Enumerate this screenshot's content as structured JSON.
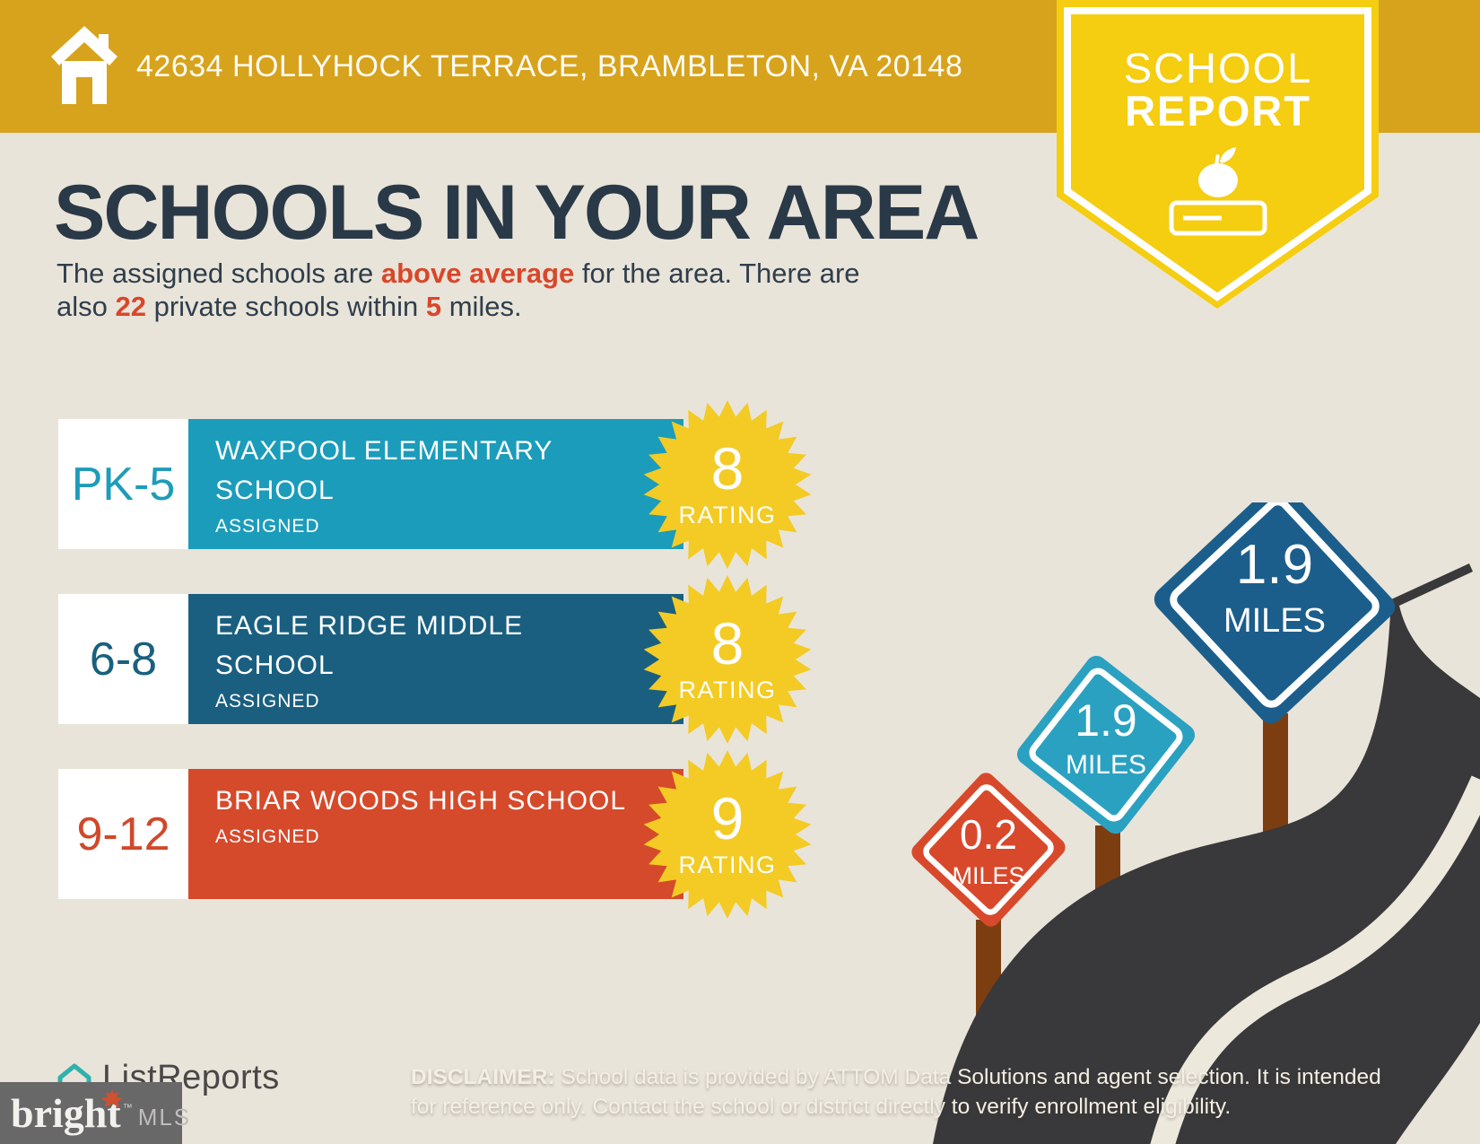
{
  "header": {
    "address": "42634 HOLLYHOCK TERRACE, BRAMBLETON, VA 20148",
    "bar_color": "#D7A31C"
  },
  "ribbon": {
    "title_line1": "SCHOOL",
    "title_line2": "REPORT",
    "color": "#F5CD11"
  },
  "page_title": "SCHOOLS IN YOUR AREA",
  "intro": {
    "seg1": "The assigned schools are ",
    "seg2": "above average",
    "seg3": " for the area. There are",
    "seg4": "also ",
    "seg5": "22",
    "seg6": " private schools within ",
    "seg7": "5",
    "seg8": " miles."
  },
  "schools": [
    {
      "grade": "PK-5",
      "name": "WAXPOOL ELEMENTARY SCHOOL",
      "status": "ASSIGNED",
      "rating": "8",
      "rating_label": "RATING",
      "color": "#1C9CBB"
    },
    {
      "grade": "6-8",
      "name": "EAGLE RIDGE MIDDLE SCHOOL",
      "status": "ASSIGNED",
      "rating": "8",
      "rating_label": "RATING",
      "color": "#1A5F80"
    },
    {
      "grade": "9-12",
      "name": "BRIAR WOODS HIGH SCHOOL",
      "status": "ASSIGNED",
      "rating": "9",
      "rating_label": "RATING",
      "color": "#D54A2B"
    }
  ],
  "signs": [
    {
      "distance": "0.2",
      "unit": "MILES",
      "color": "#D8492B"
    },
    {
      "distance": "1.9",
      "unit": "MILES",
      "color": "#2BA1C1"
    },
    {
      "distance": "1.9",
      "unit": "MILES",
      "color": "#1C5E8B"
    }
  ],
  "disclaimer": {
    "label": "DISCLAIMER:",
    "line1_rest": " School data is provided by ATTOM Data Solutions and agent selection. It is intended",
    "line2": "for reference only. Contact the school or district directly to verify enrollment eligibility."
  },
  "footer": {
    "listreports": "ListReports",
    "bright_word": "bright",
    "bright_tm": "™",
    "bright_suffix": "MLS"
  },
  "colors": {
    "background": "#E9E4D9",
    "header_gold": "#D7A31C",
    "ribbon_yellow": "#F5CD11",
    "starburst_yellow": "#F3CB24",
    "title_navy": "#2A3947",
    "accent_red": "#D8472B",
    "road_dark": "#39383A",
    "post_brown": "#7C3E11",
    "listreports_teal": "#2FB2AD"
  }
}
